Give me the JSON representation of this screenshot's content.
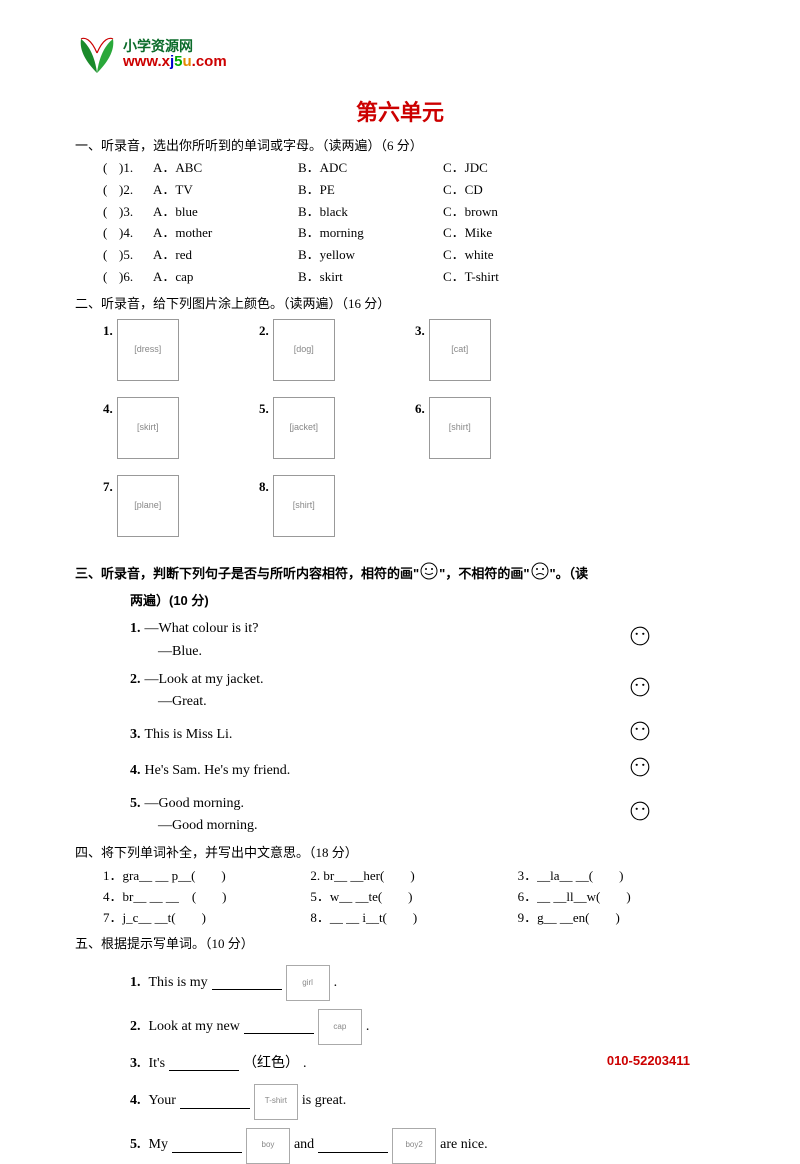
{
  "colors": {
    "title": "#cc0000",
    "phone": "#cc0000",
    "text": "#000000",
    "background": "#ffffff",
    "logo_green": "#0b6b2a"
  },
  "logo": {
    "cn": "小学资源网",
    "url_prefix": "www.",
    "url_letters": [
      "x",
      "j",
      "5",
      "u"
    ],
    "url_suffix": ".com"
  },
  "title": "第六单元",
  "section1": {
    "heading": "一、听录音，选出你所听到的单词或字母。（读两遍）（6 分）",
    "rows": [
      {
        "n": ")1.",
        "a": "A．ABC",
        "b": "B．ADC",
        "c": "C．JDC"
      },
      {
        "n": ")2.",
        "a": "A．TV",
        "b": "B．PE",
        "c": "C．CD"
      },
      {
        "n": ")3.",
        "a": "A．blue",
        "b": "B．black",
        "c": "C．brown"
      },
      {
        "n": ")4.",
        "a": "A．mother",
        "b": "B．morning",
        "c": "C．Mike"
      },
      {
        "n": ")5.",
        "a": "A．red",
        "b": "B．yellow",
        "c": "C．white"
      },
      {
        "n": ")6.",
        "a": "A．cap",
        "b": "B．skirt",
        "c": "C．T-shirt"
      }
    ]
  },
  "section2": {
    "heading": "二、听录音，给下列图片涂上颜色。（读两遍）（16 分）",
    "items": [
      {
        "n": "1.",
        "label": "dress"
      },
      {
        "n": "2.",
        "label": "dog"
      },
      {
        "n": "3.",
        "label": "cat"
      },
      {
        "n": "4.",
        "label": "skirt"
      },
      {
        "n": "5.",
        "label": "jacket"
      },
      {
        "n": "6.",
        "label": "shirt"
      },
      {
        "n": "7.",
        "label": "plane"
      },
      {
        "n": "8.",
        "label": "shirt"
      }
    ]
  },
  "section3": {
    "heading_a": "三、听录音，判断下列句子是否与所听内容相符，相符的画\"",
    "heading_b": "\"，不相符的画\"",
    "heading_c": "\"。（读",
    "subhead": "两遍）(10 分)",
    "items": [
      {
        "n": "1.",
        "lines": [
          "—What colour is it?",
          "—Blue."
        ]
      },
      {
        "n": "2.",
        "lines": [
          "—Look at my jacket.",
          "—Great."
        ]
      },
      {
        "n": "3.",
        "lines": [
          "This is Miss Li."
        ]
      },
      {
        "n": "4.",
        "lines": [
          "He's Sam. He's my friend."
        ]
      },
      {
        "n": "5.",
        "lines": [
          "—Good morning.",
          "—Good morning."
        ]
      }
    ]
  },
  "section4": {
    "heading": "四、将下列单词补全，并写出中文意思。（18 分）",
    "rows": [
      [
        "1．gra__ __ p__(　　)",
        "2. br__ __her(　　)",
        "3．__la__ __(　　)"
      ],
      [
        "4．br__ __ __　(　　)",
        "5．w__ __te(　　)",
        "6．__ __ll__w(　　)"
      ],
      [
        "7．j_c__ __t(　　)",
        "8．__ __ i__t(　　)",
        "9．g__ __en(　　)"
      ]
    ]
  },
  "section5": {
    "heading": "五、根据提示写单词。（10 分）",
    "items": [
      {
        "n": "1.",
        "pre": "This is my ",
        "img": "girl",
        "post": "."
      },
      {
        "n": "2.",
        "pre": "Look at my new ",
        "img": "cap",
        "post": "."
      },
      {
        "n": "3.",
        "pre": "It's ",
        "hint": "（红色）",
        "post": "."
      },
      {
        "n": "4.",
        "pre": "Your ",
        "img": "T-shirt",
        "post": " is great."
      },
      {
        "n": "5.",
        "pre": "My ",
        "img": "boy",
        "mid": " and ",
        "img2": "boy2",
        "post": " are nice."
      }
    ]
  },
  "phone": "010-52203411"
}
